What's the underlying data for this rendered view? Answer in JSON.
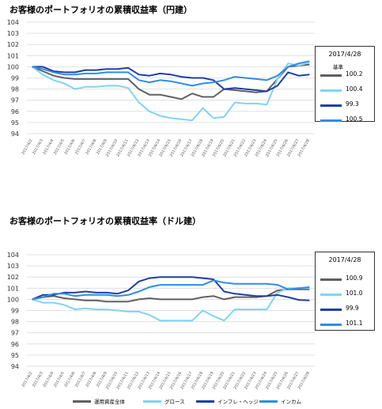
{
  "chart_data": [
    {
      "type": "line",
      "title": "お客様のポートフォリオの累積収益率（円建）",
      "x": [
        "2017/4/2",
        "2017/4/3",
        "2017/4/4",
        "2017/4/5",
        "2017/4/6",
        "2017/4/7",
        "2017/4/8",
        "2017/4/9",
        "2017/4/10",
        "2017/4/11",
        "2017/4/12",
        "2017/4/13",
        "2017/4/14",
        "2017/4/15",
        "2017/4/16",
        "2017/4/17",
        "2017/4/18",
        "2017/4/19",
        "2017/4/20",
        "2017/4/21",
        "2017/4/22",
        "2017/4/23",
        "2017/4/24",
        "2017/4/25",
        "2017/4/26",
        "2017/4/27",
        "2017/4/28"
      ],
      "ylim": [
        94,
        104
      ],
      "yticks": [
        94,
        95,
        96,
        97,
        98,
        99,
        100,
        101,
        102,
        103,
        104
      ],
      "grid": true,
      "legend_date": "2017/4/28",
      "legend_header": "基準",
      "series": [
        {
          "name": "運用資産全体",
          "color": "#5f6062",
          "legend_value": "100.2",
          "values": [
            100,
            99.6,
            99.2,
            99.0,
            98.9,
            98.9,
            98.9,
            98.9,
            98.9,
            98.9,
            98.0,
            97.5,
            97.5,
            97.3,
            97.1,
            97.6,
            97.3,
            97.3,
            98.0,
            97.9,
            97.8,
            97.7,
            97.8,
            98.9,
            100.0,
            100.1,
            100.2
          ]
        },
        {
          "name": "グロース",
          "color": "#7fd4f5",
          "legend_value": "100.4",
          "values": [
            100,
            99.3,
            98.8,
            98.5,
            98.0,
            98.2,
            98.2,
            98.3,
            98.3,
            98.1,
            96.8,
            96.0,
            95.6,
            95.4,
            95.3,
            95.2,
            96.3,
            95.4,
            95.5,
            96.8,
            96.7,
            96.7,
            96.6,
            98.9,
            100.3,
            100.1,
            100.4
          ]
        },
        {
          "name": "インフレ・ヘッジ",
          "color": "#1f3ea8",
          "legend_value": "99.3",
          "values": [
            100,
            100,
            99.6,
            99.5,
            99.5,
            99.7,
            99.7,
            99.8,
            99.8,
            99.9,
            99.3,
            99.2,
            99.4,
            99.3,
            99.1,
            99.0,
            99.0,
            98.8,
            98.0,
            98.1,
            98.0,
            97.9,
            97.8,
            98.3,
            99.5,
            99.2,
            99.3
          ]
        },
        {
          "name": "インカム",
          "color": "#2f8de4",
          "legend_value": "100.5",
          "values": [
            100,
            99.8,
            99.5,
            99.3,
            99.3,
            99.4,
            99.4,
            99.5,
            99.5,
            99.5,
            98.8,
            98.6,
            98.8,
            98.7,
            98.5,
            98.3,
            98.5,
            98.6,
            98.8,
            99.1,
            99.0,
            98.9,
            98.8,
            99.2,
            100.0,
            100.3,
            100.5
          ]
        }
      ]
    },
    {
      "type": "line",
      "title": "お客様のポートフォリオの累積収益率（ドル建）",
      "x": [
        "2017/4/2",
        "2017/4/3",
        "2017/4/4",
        "2017/4/5",
        "2017/4/6",
        "2017/4/7",
        "2017/4/8",
        "2017/4/9",
        "2017/4/10",
        "2017/4/11",
        "2017/4/12",
        "2017/4/13",
        "2017/4/14",
        "2017/4/15",
        "2017/4/16",
        "2017/4/17",
        "2017/4/18",
        "2017/4/19",
        "2017/4/20",
        "2017/4/21",
        "2017/4/22",
        "2017/4/23",
        "2017/4/24",
        "2017/4/25",
        "2017/4/26",
        "2017/4/27",
        "2017/4/28"
      ],
      "ylim": [
        94,
        104
      ],
      "yticks": [
        94,
        95,
        96,
        97,
        98,
        99,
        100,
        101,
        102,
        103,
        104
      ],
      "grid": true,
      "legend_date": "2017/4/28",
      "series": [
        {
          "name": "運用資産全体",
          "color": "#5f6062",
          "legend_value": "100.9",
          "values": [
            100,
            100.2,
            100.3,
            100.1,
            100.0,
            99.9,
            99.9,
            99.8,
            99.8,
            99.8,
            100.0,
            100.1,
            100.0,
            100.0,
            100.0,
            100.0,
            100.2,
            100.3,
            100.0,
            100.2,
            100.2,
            100.2,
            100.3,
            100.8,
            100.9,
            100.9,
            100.9
          ]
        },
        {
          "name": "グロース",
          "color": "#7fd4f5",
          "legend_value": "101.0",
          "values": [
            100,
            99.7,
            99.7,
            99.5,
            99.1,
            99.2,
            99.1,
            99.1,
            99.0,
            98.9,
            98.9,
            98.6,
            98.1,
            98.1,
            98.1,
            98.1,
            99.0,
            98.5,
            98.1,
            99.1,
            99.1,
            99.1,
            99.1,
            100.6,
            101.0,
            101.0,
            101.0
          ]
        },
        {
          "name": "インフレ・ヘッジ",
          "color": "#1f3ea8",
          "legend_value": "99.9",
          "values": [
            100,
            100.4,
            100.4,
            100.6,
            100.6,
            100.7,
            100.6,
            100.6,
            100.5,
            100.8,
            101.6,
            101.9,
            102.0,
            102.0,
            102.0,
            102.0,
            101.9,
            101.8,
            100.7,
            100.5,
            100.4,
            100.3,
            100.3,
            100.4,
            100.2,
            99.95,
            99.9
          ]
        },
        {
          "name": "インカム",
          "color": "#2f8de4",
          "legend_value": "101.1",
          "values": [
            100,
            100.2,
            100.5,
            100.5,
            100.3,
            100.4,
            100.4,
            100.4,
            100.3,
            100.4,
            100.7,
            101.1,
            101.3,
            101.3,
            101.3,
            101.3,
            101.3,
            101.7,
            101.5,
            101.4,
            101.4,
            101.4,
            101.4,
            101.3,
            100.9,
            101.0,
            101.1
          ]
        }
      ]
    }
  ],
  "bottom_legend": [
    {
      "label": "運用資産全体",
      "color": "#5f6062"
    },
    {
      "label": "グロース",
      "color": "#7fd4f5"
    },
    {
      "label": "インフレ・ヘッジ",
      "color": "#1f3ea8"
    },
    {
      "label": "インカム",
      "color": "#2f8de4"
    }
  ]
}
